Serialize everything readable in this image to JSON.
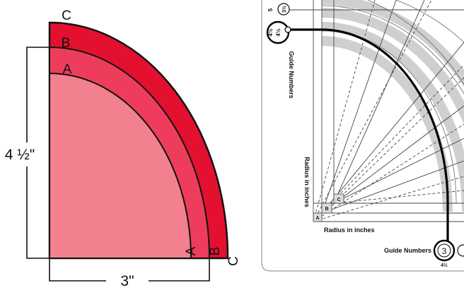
{
  "quarter_diagram": {
    "labels": {
      "c_top": "C",
      "b_top": "B",
      "a_top": "A",
      "a_bottom": "A",
      "b_bottom": "B",
      "c_bottom": "C"
    },
    "height_label": "4 ½\"",
    "width_label": "3\"",
    "colors": {
      "outer": "#e3102f",
      "middle": "#ee3d5c",
      "inner": "#f2808f",
      "stroke": "#111111"
    }
  },
  "template": {
    "guide_numbers_top": {
      "num_a": "3½",
      "num_b": "4½",
      "tick_a": "5",
      "tick_b": "4½"
    },
    "guide_label_vertical": "Guide Numbers",
    "radius_label_vertical": "Radius in inches",
    "radius_label_horizontal": "Radius in inches",
    "corner_letters": {
      "a": "A",
      "b": "B",
      "c": "C"
    },
    "guide_label_bottom": "Guide Numbers",
    "bottom_circle_num": "3",
    "bottom_sub": "4½",
    "colors": {
      "band": "#cfcfcf",
      "line": "#444444",
      "arc": "#000000"
    }
  }
}
